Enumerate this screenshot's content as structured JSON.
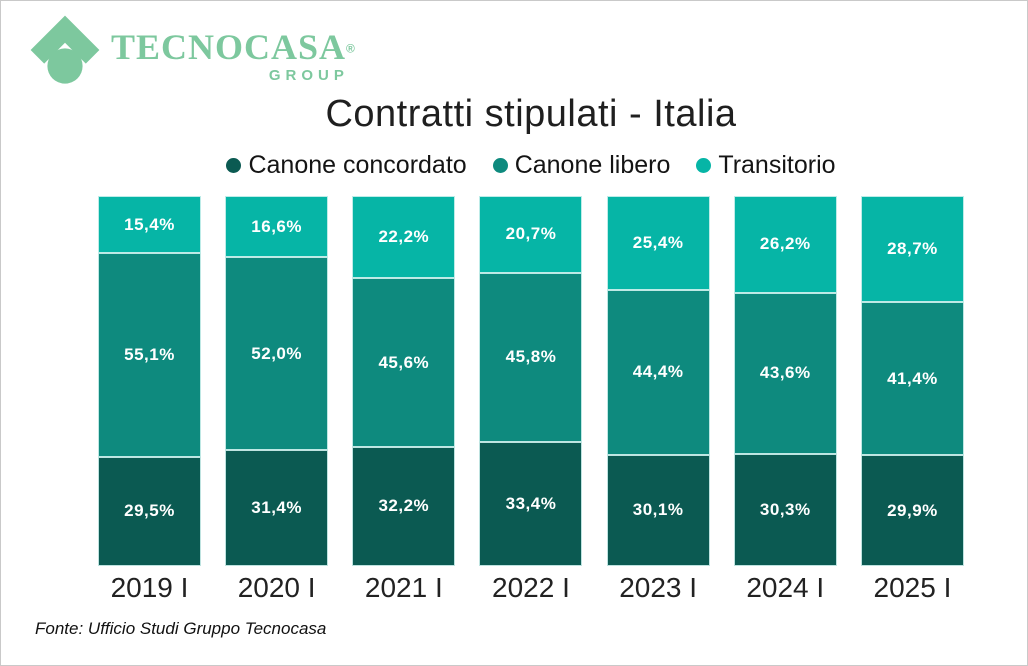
{
  "logo": {
    "brand": "TECNOCASA",
    "registered": "®",
    "sub": "GROUP",
    "color": "#7dc89e"
  },
  "title": "Contratti stipulati - Italia",
  "legend": [
    {
      "label": "Canone concordato",
      "color": "#0b5a52"
    },
    {
      "label": "Canone libero",
      "color": "#0e8a7e"
    },
    {
      "label": "Transitorio",
      "color": "#06b5a6"
    }
  ],
  "chart_data": {
    "type": "bar",
    "stacked": true,
    "title": "Contratti stipulati - Italia",
    "categories": [
      "2019 I",
      "2020 I",
      "2021 I",
      "2022 I",
      "2023 I",
      "2024 I",
      "2025 I"
    ],
    "series": [
      {
        "name": "Canone concordato",
        "color": "#0b5a52",
        "values": [
          29.5,
          31.4,
          32.2,
          33.4,
          30.1,
          30.3,
          29.9
        ]
      },
      {
        "name": "Canone libero",
        "color": "#0e8a7e",
        "values": [
          55.1,
          52.0,
          45.6,
          45.8,
          44.4,
          43.6,
          41.4
        ]
      },
      {
        "name": "Transitorio",
        "color": "#06b5a6",
        "values": [
          15.4,
          16.6,
          22.2,
          20.7,
          25.4,
          26.2,
          28.7
        ]
      }
    ],
    "value_format": "percent-comma-1dp",
    "ylim": [
      0,
      100
    ],
    "grid": false,
    "legend_position": "top",
    "data_labels": "inside-center"
  },
  "footer": {
    "source": "Fonte: Ufficio Studi Gruppo Tecnocasa"
  }
}
